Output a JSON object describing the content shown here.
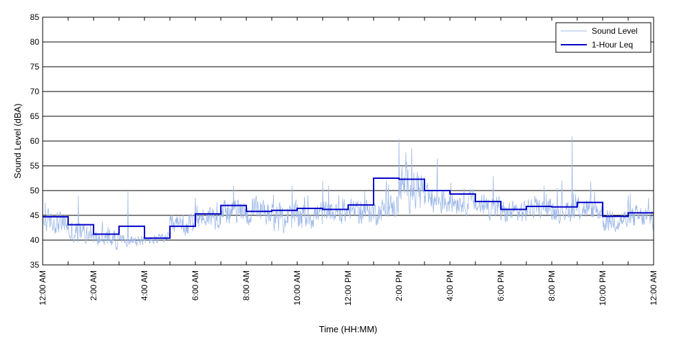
{
  "chart_data": {
    "type": "line",
    "xlabel": "Time (HH:MM)",
    "ylabel": "Sound Level (dBA)",
    "ylim": [
      35,
      85
    ],
    "yticks": [
      35,
      40,
      45,
      50,
      55,
      60,
      65,
      70,
      75,
      80,
      85
    ],
    "xlim_hours": [
      0,
      24
    ],
    "xtick_hours": [
      0,
      2,
      4,
      6,
      8,
      10,
      12,
      14,
      16,
      18,
      20,
      22,
      24
    ],
    "xtick_labels": [
      "12:00 AM",
      "2:00 AM",
      "4:00 AM",
      "6:00 AM",
      "8:00 AM",
      "10:00 AM",
      "12:00 PM",
      "2:00 PM",
      "4:00 PM",
      "6:00 PM",
      "8:00 PM",
      "10:00 PM",
      "12:00 AM"
    ],
    "grid": "horizontal",
    "legend_position": "top-right",
    "series": [
      {
        "name": "Sound Level",
        "color": "#9db8e8",
        "style": "thin-line",
        "hourly_mean": [
          44.0,
          41.5,
          40.5,
          40.0,
          39.8,
          42.5,
          44.5,
          46.0,
          45.5,
          44.5,
          45.0,
          45.5,
          46.0,
          45.5,
          51.0,
          48.0,
          48.0,
          47.0,
          45.5,
          46.5,
          46.0,
          46.5,
          44.0,
          44.5
        ],
        "hourly_spread": [
          2.5,
          2.5,
          2.0,
          1.2,
          1.0,
          2.5,
          2.5,
          2.5,
          3.0,
          3.0,
          3.0,
          2.5,
          2.5,
          2.5,
          4.5,
          3.0,
          2.5,
          2.5,
          2.5,
          2.0,
          2.5,
          2.5,
          2.5,
          2.5
        ],
        "peaks": [
          [
            0.1,
            47.5
          ],
          [
            1.4,
            49.0
          ],
          [
            3.35,
            49.8
          ],
          [
            6.0,
            48.5
          ],
          [
            7.5,
            51.0
          ],
          [
            9.8,
            51.0
          ],
          [
            11.0,
            52.0
          ],
          [
            14.0,
            60.5
          ],
          [
            14.5,
            58.5
          ],
          [
            15.5,
            56.5
          ],
          [
            17.7,
            53.0
          ],
          [
            19.7,
            51.0
          ],
          [
            20.4,
            52.0
          ],
          [
            20.8,
            61.0
          ],
          [
            23.0,
            49.0
          ],
          [
            23.8,
            48.5
          ]
        ]
      },
      {
        "name": "1-Hour Leq",
        "color": "#0000c8",
        "style": "step",
        "values": [
          44.7,
          43.1,
          41.2,
          42.8,
          40.4,
          42.8,
          45.3,
          47.0,
          45.8,
          46.0,
          46.4,
          46.2,
          47.1,
          52.5,
          52.3,
          50.0,
          49.3,
          47.8,
          46.2,
          46.8,
          46.7,
          47.6,
          44.8,
          45.5
        ]
      }
    ]
  }
}
